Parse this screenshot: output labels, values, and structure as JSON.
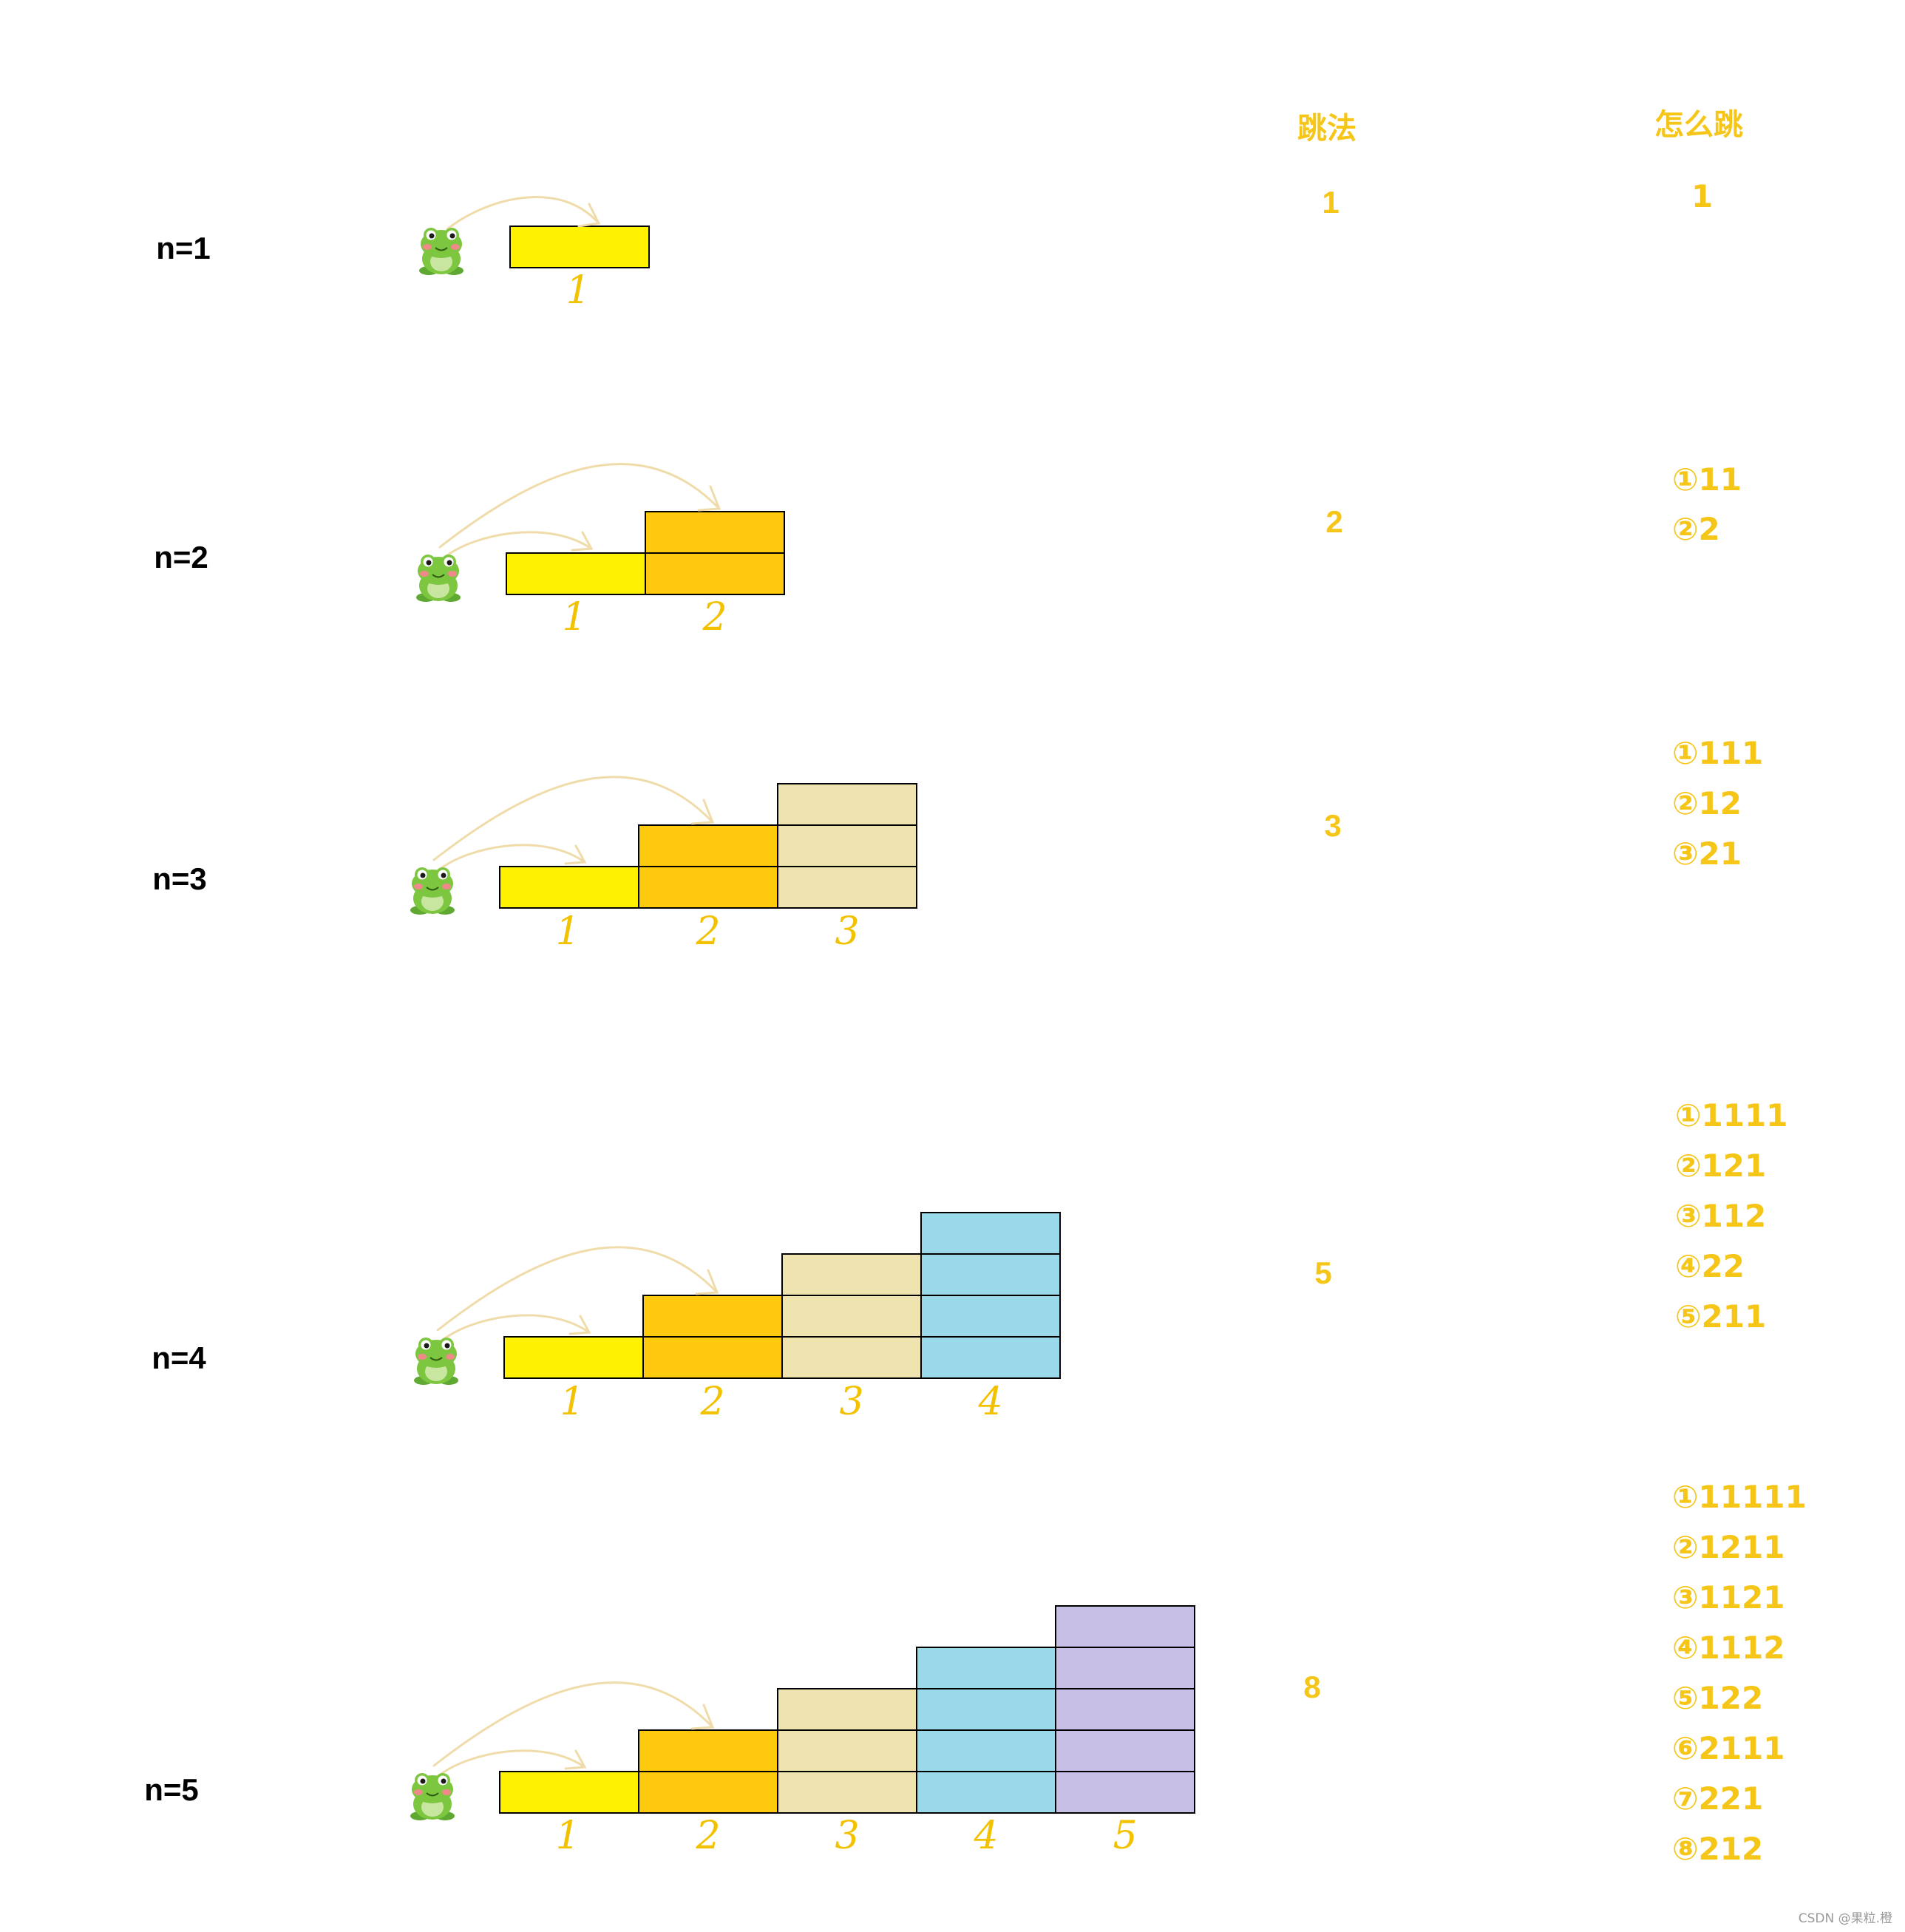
{
  "headers": {
    "ways": "跳法",
    "how": "怎么跳"
  },
  "colors": {
    "step1": "#fff200",
    "step2": "#ffc90e",
    "step3": "#efe4b0",
    "step4": "#99d9ea",
    "step5": "#c8bfe7",
    "accent": "#f5c518",
    "arrow": "#efdcaa"
  },
  "icon": "frog-icon",
  "rows": [
    {
      "label": "n=1",
      "steps": 1,
      "count": "1",
      "step_labels": [
        "1"
      ],
      "sequences": [
        "1"
      ]
    },
    {
      "label": "n=2",
      "steps": 2,
      "count": "2",
      "step_labels": [
        "1",
        "2"
      ],
      "sequences": [
        "①11",
        "②2"
      ]
    },
    {
      "label": "n=3",
      "steps": 3,
      "count": "3",
      "step_labels": [
        "1",
        "2",
        "3"
      ],
      "sequences": [
        "①111",
        "②12",
        "③21"
      ]
    },
    {
      "label": "n=4",
      "steps": 4,
      "count": "5",
      "step_labels": [
        "1",
        "2",
        "3",
        "4"
      ],
      "sequences": [
        "①1111",
        "②121",
        "③112",
        "④22",
        "⑤211"
      ]
    },
    {
      "label": "n=5",
      "steps": 5,
      "count": "8",
      "step_labels": [
        "1",
        "2",
        "3",
        "4",
        "5"
      ],
      "sequences": [
        "①11111",
        "②1211",
        "③1121",
        "④1112",
        "⑤122",
        "⑥2111",
        "⑦221",
        "⑧212"
      ]
    }
  ],
  "footer": "CSDN @果粒.橙"
}
